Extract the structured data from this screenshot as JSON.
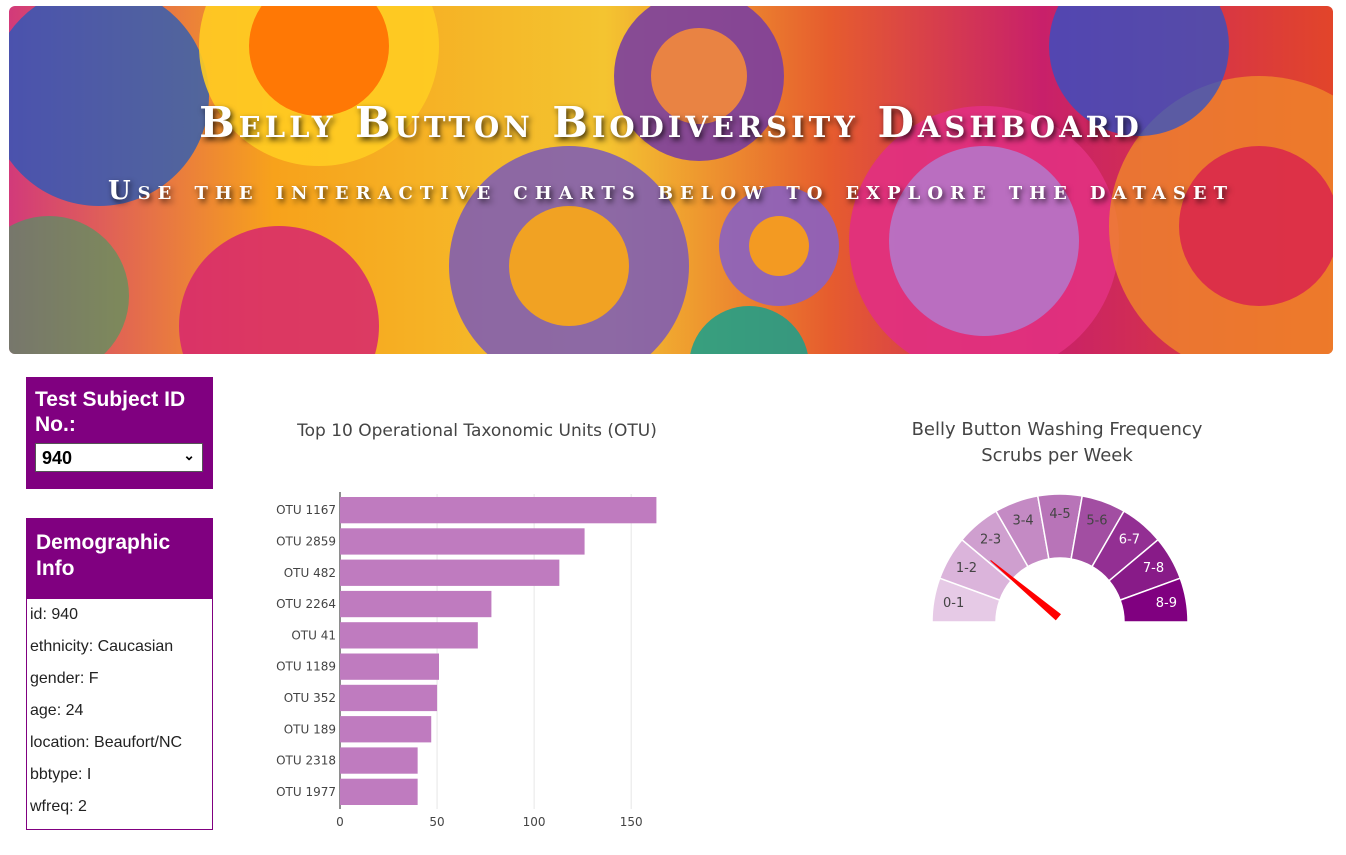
{
  "header": {
    "title": "Belly Button Biodiversity Dashboard",
    "subtitle": "Use the interactive charts below to explore the dataset"
  },
  "selector": {
    "label": "Test Subject ID No.:",
    "selected": "940"
  },
  "demographic": {
    "title": "Demographic Info",
    "rows": [
      "id: 940",
      "ethnicity: Caucasian",
      "gender: F",
      "age: 24",
      "location: Beaufort/NC",
      "bbtype: I",
      "wfreq: 2"
    ]
  },
  "chart_data": [
    {
      "type": "bar",
      "orientation": "horizontal",
      "title": "Top 10 Operational Taxonomic Units (OTU)",
      "categories": [
        "OTU 1167",
        "OTU 2859",
        "OTU 482",
        "OTU 2264",
        "OTU 41",
        "OTU 1189",
        "OTU 352",
        "OTU 189",
        "OTU 2318",
        "OTU 1977"
      ],
      "values": [
        163,
        126,
        113,
        78,
        71,
        51,
        50,
        47,
        40,
        40
      ],
      "xticks": [
        0,
        50,
        100,
        150
      ],
      "xlim": [
        0,
        170
      ],
      "color": "#bf7bbf",
      "grid": true
    },
    {
      "type": "gauge",
      "title": "Belly Button Washing Frequency",
      "subtitle": "Scrubs per Week",
      "sectors": [
        "0-1",
        "1-2",
        "2-3",
        "3-4",
        "4-5",
        "5-6",
        "6-7",
        "7-8",
        "8-9"
      ],
      "colors": [
        "#e6cae6",
        "#dbb4db",
        "#cf9fcf",
        "#c48ac4",
        "#b874b8",
        "#a24ea2",
        "#932f93",
        "#881b88",
        "#800080"
      ],
      "range": [
        0,
        9
      ],
      "value": 2,
      "needle_color": "#ff0000"
    }
  ]
}
